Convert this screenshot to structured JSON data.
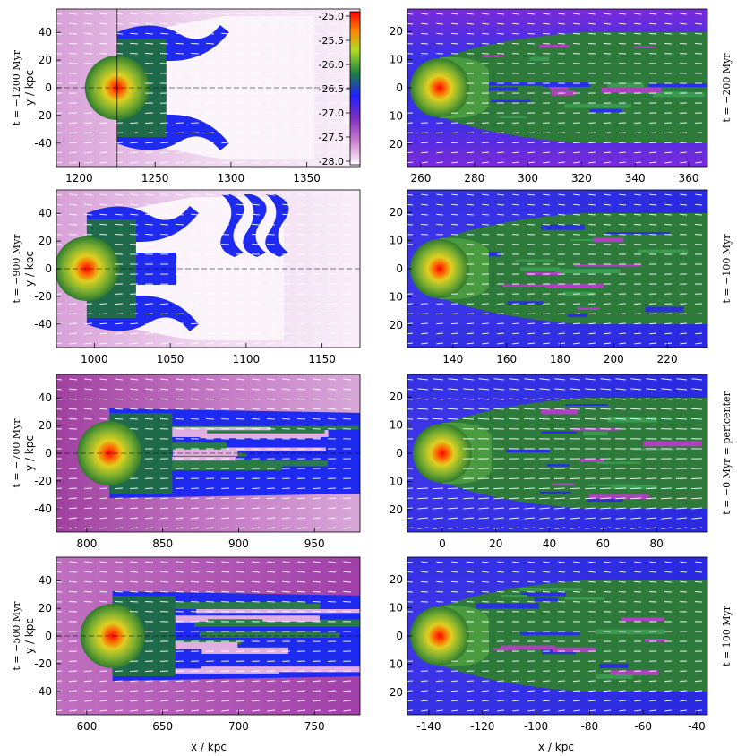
{
  "chart_data": {
    "type": "heatmap",
    "xlabel": "x / kpc",
    "ylabel": "y / kpc",
    "colorbar": {
      "ticks": [
        "-25.0",
        "-25.5",
        "-26.0",
        "-26.5",
        "-27.0",
        "-27.5",
        "-28.0"
      ],
      "range": [
        -28.0,
        -25.0
      ],
      "colors": [
        "#ffffff",
        "#c060c0",
        "#2020ff",
        "#208020",
        "#c0e020",
        "#ff8000",
        "#ff0000"
      ]
    },
    "panels": [
      {
        "id": "p1",
        "time_label": "t = −1200 Myr",
        "xticks": [
          1200,
          1250,
          1300,
          1350
        ],
        "xlim": [
          1185,
          1385
        ],
        "yticks": [
          40,
          20,
          0,
          -20,
          -40
        ],
        "ylim": [
          -57,
          57
        ],
        "center_x": 1225,
        "style": "early"
      },
      {
        "id": "p2",
        "time_label": "t = −900 Myr",
        "xticks": [
          1000,
          1050,
          1100,
          1150
        ],
        "xlim": [
          975,
          1175
        ],
        "yticks": [
          40,
          20,
          0,
          -20,
          -40
        ],
        "ylim": [
          -57,
          57
        ],
        "center_x": 995,
        "style": "early2"
      },
      {
        "id": "p3",
        "time_label": "t = −700 Myr",
        "xticks": [
          800,
          850,
          900,
          950
        ],
        "xlim": [
          780,
          980
        ],
        "yticks": [
          40,
          20,
          0,
          -20,
          -40
        ],
        "ylim": [
          -57,
          57
        ],
        "center_x": 815,
        "style": "mid"
      },
      {
        "id": "p4",
        "time_label": "t = −500 Myr",
        "xticks": [
          600,
          650,
          700,
          750
        ],
        "xlim": [
          580,
          780
        ],
        "yticks": [
          40,
          20,
          0,
          -20,
          -40
        ],
        "ylim": [
          -57,
          57
        ],
        "center_x": 617,
        "style": "late"
      },
      {
        "id": "p5",
        "time_label": "t = −200 Myr",
        "xticks": [
          260,
          280,
          300,
          320,
          340,
          360
        ],
        "xlim": [
          255,
          367
        ],
        "yticks": [
          20,
          10,
          0,
          10,
          20
        ],
        "ylim": [
          -28,
          28
        ],
        "center_x": 267,
        "style": "right1"
      },
      {
        "id": "p6",
        "time_label": "t = −100 Myr",
        "xticks": [
          140,
          160,
          180,
          200,
          220
        ],
        "xlim": [
          123,
          235
        ],
        "yticks": [
          20,
          10,
          0,
          10,
          20
        ],
        "ylim": [
          -28,
          28
        ],
        "center_x": 135,
        "style": "right2"
      },
      {
        "id": "p7",
        "time_label": "t = −0 Myr = pericenter",
        "xticks": [
          0,
          20,
          40,
          60,
          80
        ],
        "xlim": [
          -13,
          99
        ],
        "yticks": [
          20,
          10,
          0,
          10,
          20
        ],
        "ylim": [
          -28,
          28
        ],
        "center_x": 0,
        "style": "right3"
      },
      {
        "id": "p8",
        "time_label": "t = 100 Myr",
        "xticks": [
          -140,
          -120,
          -100,
          -80,
          -60,
          -40
        ],
        "xlim": [
          -148,
          -36
        ],
        "yticks": [
          20,
          10,
          0,
          10,
          20
        ],
        "ylim": [
          -28,
          28
        ],
        "center_x": -136,
        "style": "right4"
      }
    ]
  }
}
